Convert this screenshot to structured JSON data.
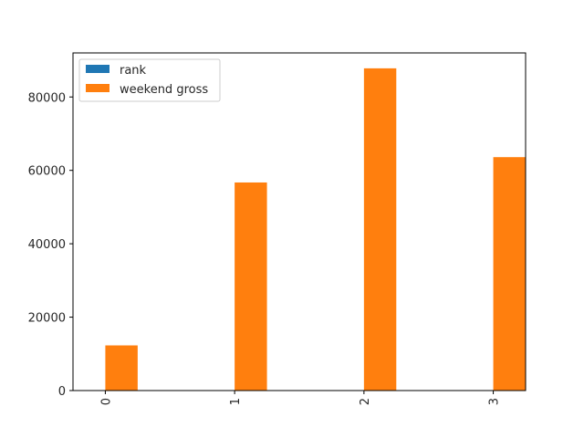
{
  "chart_data": {
    "type": "bar",
    "categories": [
      "0",
      "1",
      "2",
      "3"
    ],
    "series": [
      {
        "name": "rank",
        "values": [
          1,
          2,
          3,
          4
        ],
        "color": "#1f77b4"
      },
      {
        "name": "weekend gross",
        "values": [
          12300,
          56700,
          87800,
          63600
        ],
        "color": "#ff7f0e"
      }
    ],
    "yticks": [
      0,
      20000,
      40000,
      60000,
      80000
    ],
    "ylim": [
      0,
      92000
    ],
    "title": "",
    "xlabel": "",
    "ylabel": "",
    "legend_position": "top-left",
    "grid": false
  }
}
